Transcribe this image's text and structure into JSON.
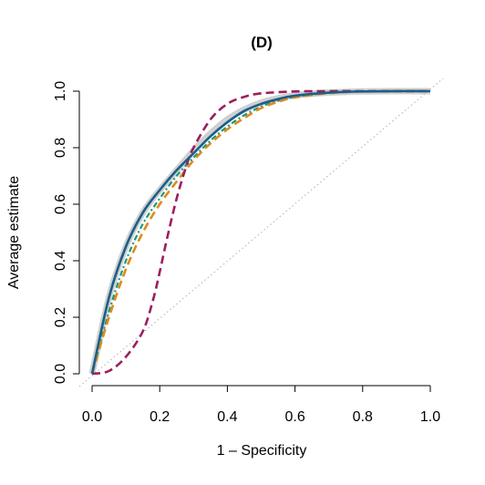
{
  "chart_data": {
    "type": "line",
    "title": "(D)",
    "xlabel": "1 – Specificity",
    "ylabel": "Average estimate",
    "xlim": [
      0,
      1
    ],
    "ylim": [
      0,
      1
    ],
    "x_ticks": [
      "0.0",
      "0.2",
      "0.4",
      "0.6",
      "0.8",
      "1.0"
    ],
    "y_ticks": [
      "0.0",
      "0.2",
      "0.4",
      "0.6",
      "0.8",
      "1.0"
    ],
    "grid": false,
    "legend": "none",
    "series": [
      {
        "color": "#aaaaaa",
        "style": "band",
        "x": [
          0,
          0.05,
          0.1,
          0.15,
          0.2,
          0.25,
          0.3,
          0.35,
          0.4,
          0.45,
          0.5,
          0.55,
          0.6,
          0.7,
          0.8,
          0.9,
          1.0
        ],
        "y": [
          0,
          0.27,
          0.45,
          0.57,
          0.65,
          0.72,
          0.79,
          0.85,
          0.9,
          0.935,
          0.96,
          0.975,
          0.985,
          0.995,
          0.999,
          1.0,
          1.0
        ]
      },
      {
        "color": "#1b5e8a",
        "style": "solid",
        "x": [
          0,
          0.05,
          0.1,
          0.15,
          0.2,
          0.25,
          0.3,
          0.35,
          0.4,
          0.45,
          0.5,
          0.55,
          0.6,
          0.7,
          0.8,
          0.9,
          1.0
        ],
        "y": [
          0,
          0.27,
          0.45,
          0.57,
          0.65,
          0.72,
          0.78,
          0.84,
          0.89,
          0.93,
          0.955,
          0.972,
          0.984,
          0.995,
          0.999,
          1.0,
          1.0
        ]
      },
      {
        "color": "#1a9a77",
        "style": "dotted",
        "x": [
          0,
          0.05,
          0.1,
          0.15,
          0.2,
          0.25,
          0.3,
          0.35,
          0.4,
          0.45,
          0.5,
          0.55,
          0.6,
          0.7,
          0.8,
          0.9,
          1.0
        ],
        "y": [
          0,
          0.22,
          0.4,
          0.53,
          0.62,
          0.7,
          0.765,
          0.825,
          0.875,
          0.915,
          0.945,
          0.966,
          0.98,
          0.994,
          0.999,
          1.0,
          1.0
        ]
      },
      {
        "color": "#e08a1a",
        "style": "dashed",
        "x": [
          0,
          0.05,
          0.1,
          0.15,
          0.2,
          0.25,
          0.3,
          0.35,
          0.4,
          0.45,
          0.5,
          0.55,
          0.6,
          0.7,
          0.8,
          0.9,
          1.0
        ],
        "y": [
          0,
          0.2,
          0.37,
          0.5,
          0.6,
          0.68,
          0.755,
          0.815,
          0.865,
          0.905,
          0.94,
          0.962,
          0.978,
          0.993,
          0.999,
          1.0,
          1.0
        ]
      },
      {
        "color": "#9a1f5e",
        "style": "dashed",
        "x": [
          0,
          0.05,
          0.1,
          0.15,
          0.18,
          0.2,
          0.22,
          0.25,
          0.28,
          0.3,
          0.35,
          0.4,
          0.45,
          0.5,
          0.6,
          0.7,
          0.8,
          0.9,
          1.0
        ],
        "y": [
          0,
          0.01,
          0.06,
          0.15,
          0.26,
          0.36,
          0.47,
          0.62,
          0.74,
          0.8,
          0.9,
          0.955,
          0.98,
          0.992,
          0.999,
          1.0,
          1.0,
          1.0,
          1.0
        ]
      },
      {
        "color": "#b0b0b0",
        "style": "diagonal",
        "x": [
          0,
          1
        ],
        "y": [
          0,
          1
        ]
      }
    ]
  }
}
